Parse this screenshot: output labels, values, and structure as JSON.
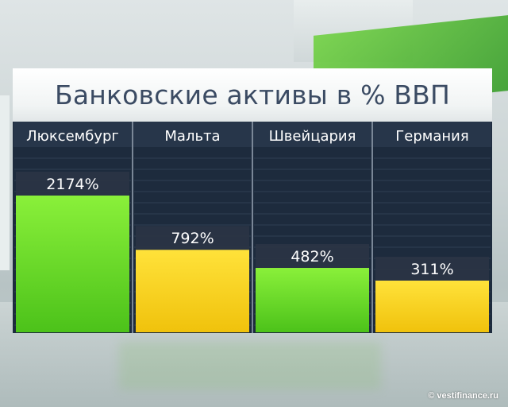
{
  "chart_data": {
    "type": "bar",
    "title": "Банковские активы в % ВВП",
    "categories": [
      "Люксембург",
      "Мальта",
      "Швейцария",
      "Германия"
    ],
    "values": [
      2174,
      792,
      482,
      311
    ],
    "value_labels": [
      "2174%",
      "792%",
      "482%",
      "311%"
    ],
    "bar_colors": [
      "#6ee020",
      "#f7d417",
      "#6ee020",
      "#f7d417"
    ],
    "ylim": [
      0,
      2174
    ]
  },
  "watermark": "© vestifinance.ru",
  "colors": {
    "panel": "#1d2b3d",
    "header": "#27364a",
    "label_box": "#2a3445",
    "green": "#6ee020",
    "yellow": "#f7d417"
  }
}
